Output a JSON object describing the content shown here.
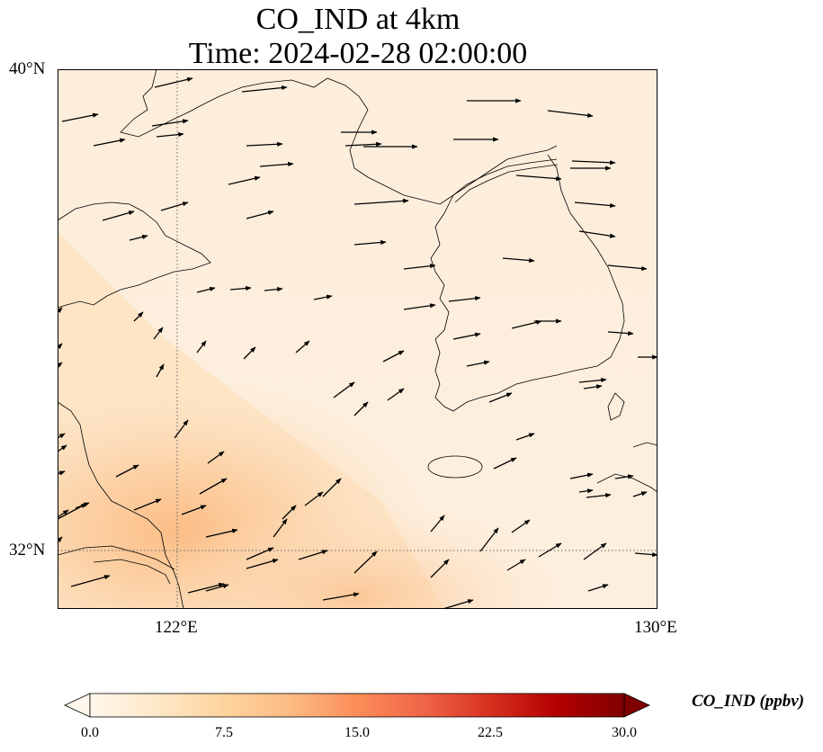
{
  "title": {
    "line1": "CO_IND at 4km",
    "line2": "Time: 2024-02-28 02:00:00"
  },
  "map": {
    "lon_labels": [
      "122°E",
      "130°E"
    ],
    "lat_labels": [
      "40°N",
      "32°N"
    ],
    "lon_range": [
      120.0,
      130.0
    ],
    "lat_range": [
      31.0,
      40.0
    ],
    "gridlines": {
      "lon": [
        122,
        130
      ],
      "lat": [
        32,
        40
      ],
      "style": "dotted"
    },
    "coastline_color": "#000000"
  },
  "colorbar": {
    "label": "CO_IND (ppbv)",
    "ticks": [
      "0.0",
      "7.5",
      "15.0",
      "22.5",
      "30.0"
    ],
    "range": [
      0,
      30
    ],
    "colormap": [
      "#fff7ec",
      "#fee8c8",
      "#fdd49e",
      "#fdbb84",
      "#fc8d59",
      "#ef6548",
      "#d7301f",
      "#b30000",
      "#7f0000"
    ],
    "extend": "both"
  }
}
